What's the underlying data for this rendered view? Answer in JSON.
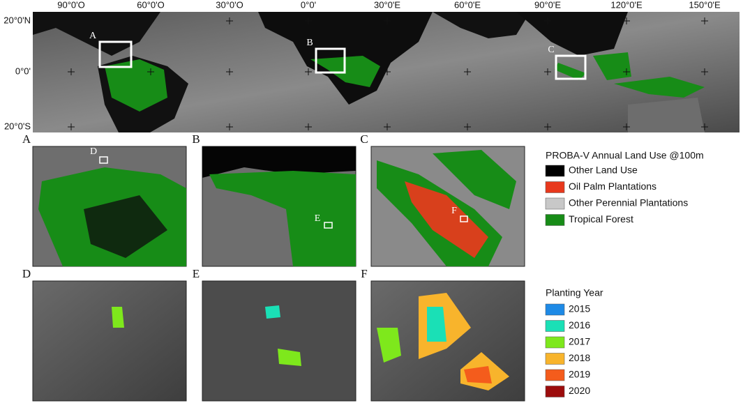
{
  "overview_map": {
    "longitude_labels": [
      "90°0'O",
      "60°0'O",
      "30°0'O",
      "0°0'",
      "30°0'E",
      "60°0'E",
      "90°0'E",
      "120°0'E",
      "150°0'E"
    ],
    "latitude_labels": [
      "20°0'N",
      "0°0'",
      "20°0'S"
    ],
    "box_labels": [
      "A",
      "B",
      "C"
    ]
  },
  "panels": [
    {
      "label": "A",
      "inset_label": "D"
    },
    {
      "label": "B",
      "inset_label": "E"
    },
    {
      "label": "C",
      "inset_label": "F"
    },
    {
      "label": "D"
    },
    {
      "label": "E"
    },
    {
      "label": "F"
    }
  ],
  "legends": [
    {
      "title": "PROBA-V Annual Land Use @100m",
      "items": [
        {
          "label": "Other Land Use",
          "color": "#000000"
        },
        {
          "label": "Oil Palm Plantations",
          "color": "#e8381c"
        },
        {
          "label": "Other Perennial Plantations",
          "color": "#c8c8c8"
        },
        {
          "label": "Tropical Forest",
          "color": "#178c17"
        }
      ]
    },
    {
      "title": "Planting Year",
      "items": [
        {
          "label": "2015",
          "color": "#1e8ae6"
        },
        {
          "label": "2016",
          "color": "#1ae0b6"
        },
        {
          "label": "2017",
          "color": "#7ee81c"
        },
        {
          "label": "2018",
          "color": "#f8b42c"
        },
        {
          "label": "2019",
          "color": "#f45c1c"
        },
        {
          "label": "2020",
          "color": "#9c0c0c"
        }
      ]
    }
  ]
}
